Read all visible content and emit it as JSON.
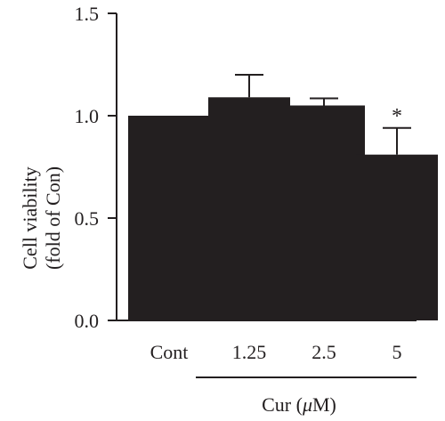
{
  "chart_data": {
    "type": "bar",
    "categories": [
      "Cont",
      "1.25",
      "2.5",
      "5"
    ],
    "values": [
      1.0,
      1.09,
      1.05,
      0.81
    ],
    "errors": [
      0.0,
      0.11,
      0.035,
      0.13
    ],
    "significance": [
      "",
      "",
      "",
      "*"
    ],
    "ylabel_lines": [
      "Cell viability",
      "(fold of Con)"
    ],
    "ylim": [
      0,
      1.5
    ],
    "yticks": [
      "0.0",
      "0.5",
      "1.0",
      "1.5"
    ],
    "ytick_values": [
      0,
      0.5,
      1.0,
      1.5
    ],
    "group_label_prefix": "Cur (",
    "group_label_mu": "μ",
    "group_label_suffix": "M)",
    "grid": false,
    "bar_color": "#231f20"
  }
}
